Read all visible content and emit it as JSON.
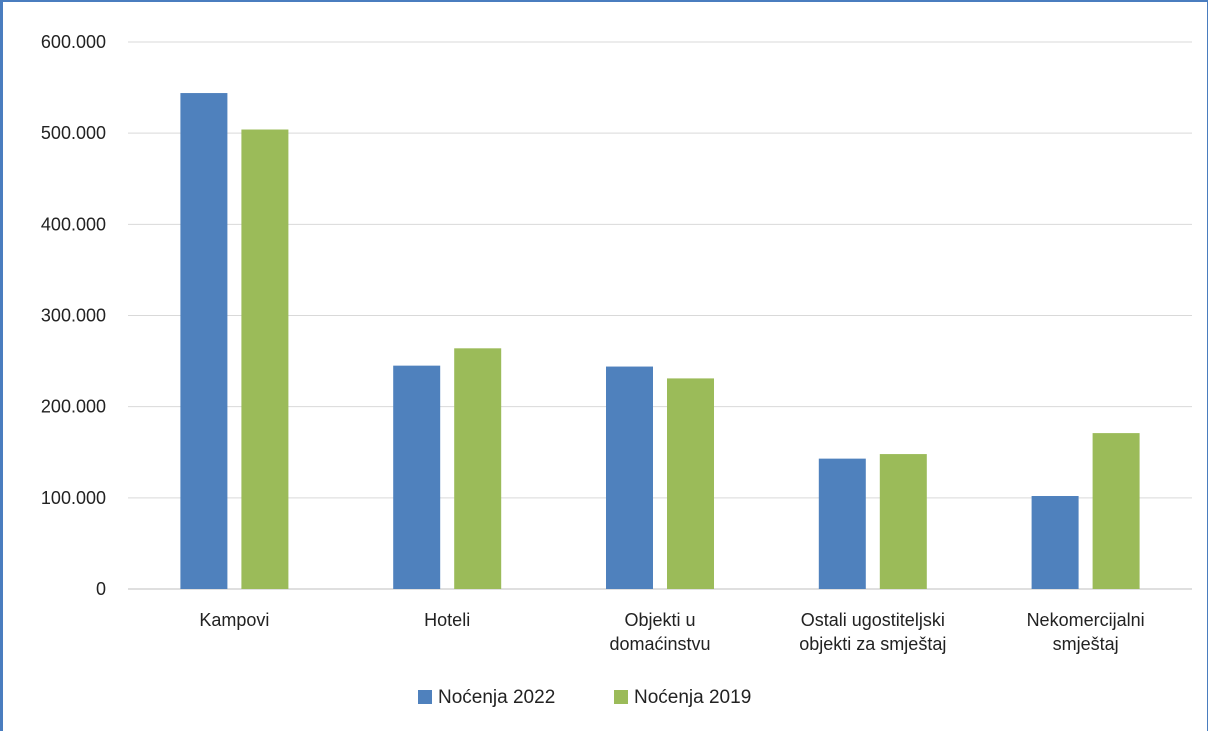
{
  "chart_data": {
    "type": "bar",
    "categories": [
      [
        "Kampovi"
      ],
      [
        "Hoteli"
      ],
      [
        "Objekti u",
        "domaćinstvu"
      ],
      [
        "Ostali ugostiteljski",
        "objekti za smještaj"
      ],
      [
        "Nekomercijalni",
        "smještaj"
      ]
    ],
    "series": [
      {
        "name": "Noćenja 2022",
        "color": "#4f81bd",
        "values": [
          544000,
          245000,
          244000,
          143000,
          102000
        ]
      },
      {
        "name": "Noćenja 2019",
        "color": "#9bbb59",
        "values": [
          504000,
          264000,
          231000,
          148000,
          171000
        ]
      }
    ],
    "ylim": [
      0,
      600000
    ],
    "yticks": [
      0,
      100000,
      200000,
      300000,
      400000,
      500000,
      600000
    ],
    "ytick_labels": [
      "0",
      "100.000",
      "200.000",
      "300.000",
      "400.000",
      "500.000",
      "600.000"
    ],
    "grid": true,
    "legend_position": "bottom",
    "title": "",
    "xlabel": "",
    "ylabel": ""
  }
}
